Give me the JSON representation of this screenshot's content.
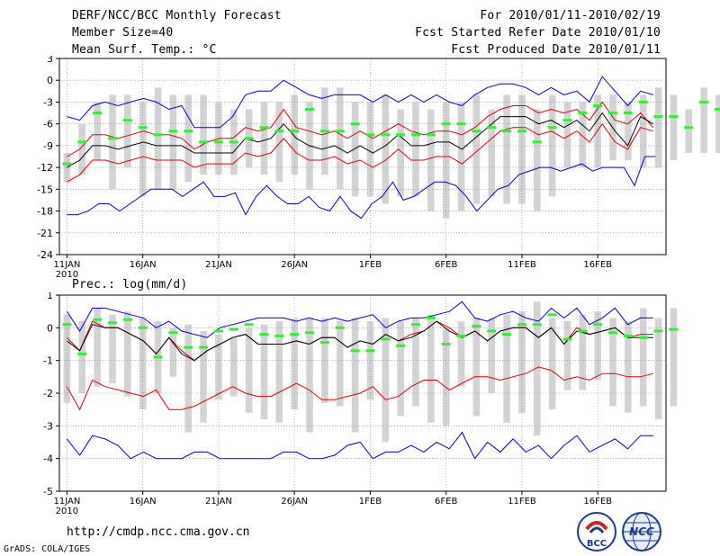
{
  "header": {
    "title": "DERF/NCC/BCC Monthly Forecast",
    "member_size": "Member Size=40",
    "variable1": "Mean Surf. Temp.: °C",
    "period": "For 2010/01/11-2010/02/19",
    "fcst_started": "Fcst Started Refer Date 2010/01/10",
    "fcst_produced": "Fcst Produced Date 2010/01/11"
  },
  "footer": {
    "url": "http://cmdp.ncc.cma.gov.cn",
    "grads": "GrADS: COLA/IGES",
    "logo_bcc": "BCC",
    "logo_ncc": "NCC"
  },
  "colors": {
    "max_line": "#0000cc",
    "min_line": "#0000cc",
    "upper_line": "#dd0000",
    "lower_line": "#dd0000",
    "mean_line": "#000000",
    "bar": "#d3d3d6",
    "obs": "#33ee33",
    "grid": "#888888"
  },
  "chart_data": [
    {
      "type": "line",
      "title": "Mean Surf. Temp.: °C",
      "ylim": [
        -24,
        3
      ],
      "yticks": [
        3,
        0,
        -3,
        -6,
        -9,
        -12,
        -15,
        -18,
        -21,
        -24
      ],
      "xlim": [
        0.5,
        40.5
      ],
      "xtick_days": [
        1,
        6,
        11,
        16,
        21,
        26,
        31,
        36
      ],
      "xtick_labels": [
        "11JAN",
        "16JAN",
        "21JAN",
        "26JAN",
        "1FEB",
        "6FEB",
        "11FEB",
        "16FEB"
      ],
      "year_label": "2010",
      "grid": true,
      "series": [
        {
          "name": "max",
          "values": [
            -5,
            -5.5,
            -3.5,
            -3,
            -3.5,
            -3,
            -2.5,
            -3,
            -4,
            -3.5,
            -6.5,
            -6.5,
            -6.5,
            -5,
            -2,
            -1.5,
            -1.5,
            0,
            -1,
            -2,
            -2.5,
            -2,
            -2,
            -2,
            -3,
            -2,
            -3,
            -2,
            -3,
            -2,
            -3,
            -3.5,
            -2,
            -1,
            -0.5,
            -0.5,
            -1,
            -2,
            -1,
            -2,
            -1.5,
            -3,
            0.5,
            -1.5,
            -3.5,
            -1.5,
            -2
          ]
        },
        {
          "name": "upper",
          "values": [
            -10.5,
            -9.5,
            -7.5,
            -7.5,
            -8,
            -7.5,
            -7,
            -7.5,
            -7.5,
            -8,
            -9.5,
            -8.5,
            -8,
            -8,
            -6.5,
            -7,
            -6.5,
            -4,
            -6.5,
            -7,
            -7.5,
            -7,
            -8,
            -7,
            -8,
            -7,
            -6,
            -7,
            -7.5,
            -7,
            -7,
            -7.5,
            -6.5,
            -5,
            -4,
            -3.5,
            -3.5,
            -4.5,
            -4,
            -4.5,
            -4,
            -5.5,
            -3,
            -5.5,
            -6,
            -4.5,
            -6.5
          ]
        },
        {
          "name": "mean",
          "values": [
            -12,
            -11,
            -9,
            -9,
            -9.5,
            -9,
            -8.5,
            -9,
            -9,
            -9,
            -10,
            -10,
            -10,
            -10,
            -8,
            -8.5,
            -8,
            -6,
            -8,
            -9,
            -9.5,
            -9,
            -10,
            -9,
            -10,
            -9,
            -7.5,
            -9,
            -9,
            -8.5,
            -8.5,
            -9.5,
            -8,
            -6.5,
            -5,
            -5,
            -5,
            -6,
            -5.5,
            -6.5,
            -5.5,
            -7,
            -4.5,
            -7,
            -9,
            -5,
            -6
          ]
        },
        {
          "name": "lower",
          "values": [
            -14,
            -13,
            -11,
            -11,
            -11.5,
            -11,
            -10.5,
            -11,
            -11,
            -11,
            -12,
            -11.5,
            -11.5,
            -11.5,
            -10,
            -10.5,
            -10,
            -8,
            -10,
            -11,
            -11,
            -10.5,
            -11.5,
            -11,
            -12,
            -11,
            -9.5,
            -11,
            -11,
            -10.5,
            -10.5,
            -11.5,
            -10,
            -8.5,
            -7,
            -6.5,
            -6.5,
            -7.5,
            -7,
            -8,
            -7,
            -8.5,
            -6,
            -8.5,
            -9.5,
            -6.5,
            -7
          ]
        },
        {
          "name": "min",
          "values": [
            -18.5,
            -18.5,
            -18,
            -17,
            -17,
            -18,
            -17,
            -16,
            -15,
            -15,
            -15,
            -16,
            -15,
            -14,
            -16,
            -16,
            -15.5,
            -18.5,
            -16,
            -14.5,
            -16,
            -17,
            -17,
            -16,
            -17.5,
            -18,
            -16,
            -18,
            -19,
            -17,
            -16,
            -14,
            -16.5,
            -16,
            -15,
            -14,
            -14,
            -14.5,
            -16,
            -18,
            -16.5,
            -15,
            -14.5,
            -13,
            -12.5,
            -12,
            -12,
            -12.5,
            -12,
            -11.5,
            -12.5,
            -12,
            -12,
            -12,
            -14.5,
            -10.5,
            -10.5
          ]
        },
        {
          "name": "obs",
          "values": [
            -11.5,
            -8.5,
            -4.5,
            -8,
            -5.5,
            -6.5,
            -7.5,
            -7,
            -7,
            -8.5,
            -8.5,
            -8.5,
            -8,
            -6.5,
            -7,
            -7,
            -4,
            -7,
            -7,
            -6,
            -7.5,
            -7.5,
            -7.5,
            -7.5,
            -7.5,
            -6,
            -6,
            -7,
            -6.5,
            -7,
            -7,
            -8.5,
            -6.5,
            -5.5,
            -4.5,
            -3.5,
            -4.5,
            -4.5,
            -3,
            -5,
            -5,
            -6.5,
            -3,
            -4,
            -3.5,
            -3.5,
            -3.5
          ]
        },
        {
          "name": "bar_high",
          "values": [
            -10,
            -6,
            -3,
            -2,
            -2,
            -3,
            -1,
            -2,
            -2,
            -2,
            -3,
            -4,
            -4,
            -3,
            -3,
            -2,
            -3,
            -1,
            -1,
            -3,
            -3,
            -2,
            -4,
            -3,
            -4,
            -3,
            -3,
            -2,
            -4,
            -2,
            -2,
            -4,
            -2,
            -3,
            -3,
            -2,
            -2,
            -3,
            -2,
            -1,
            -2,
            -4,
            -1,
            -2,
            -3,
            -2,
            -2
          ]
        },
        {
          "name": "bar_low",
          "values": [
            -14,
            -13,
            -11,
            -15,
            -12,
            -16,
            -15,
            -15,
            -14,
            -13,
            -13,
            -13,
            -12,
            -13,
            -14,
            -13,
            -15,
            -13,
            -15,
            -16,
            -16,
            -17,
            -16,
            -16,
            -18,
            -19,
            -18,
            -17,
            -16,
            -17,
            -17,
            -18,
            -16,
            -12,
            -12,
            -12,
            -11,
            -11,
            -12,
            -12,
            -11,
            -10,
            -10,
            -10,
            -11,
            -9,
            -10
          ]
        }
      ]
    },
    {
      "type": "line",
      "title": "Prec.: log(mm/d)",
      "ylim": [
        -5,
        1
      ],
      "yticks": [
        1,
        0,
        -1,
        -2,
        -3,
        -4,
        -5
      ],
      "xlim": [
        0.5,
        40.5
      ],
      "xtick_days": [
        1,
        6,
        11,
        16,
        21,
        26,
        31,
        36
      ],
      "xtick_labels": [
        "11JAN",
        "16JAN",
        "21JAN",
        "26JAN",
        "1FEB",
        "6FEB",
        "11FEB",
        "16FEB"
      ],
      "year_label": "2010",
      "grid": true,
      "series": [
        {
          "name": "max",
          "values": [
            0.5,
            -0.1,
            0.6,
            0.6,
            0.5,
            0.4,
            0.3,
            0,
            0.2,
            -0.1,
            -0.2,
            -0.3,
            0,
            0.1,
            0.2,
            0.3,
            0.3,
            0.3,
            0.2,
            0.3,
            0.2,
            0.3,
            0.2,
            0.3,
            0.4,
            0,
            0.2,
            0.3,
            0.3,
            0.4,
            0.5,
            0.8,
            0.3,
            0.2,
            0.4,
            0.5,
            0.3,
            0.2,
            0.6,
            0.3,
            0.6,
            0.1,
            0.3,
            0.6,
            0.1,
            0.3,
            0.3
          ]
        },
        {
          "name": "upper",
          "values": [
            -0.3,
            -0.7,
            0.2,
            0,
            0,
            -0.2,
            -0.4,
            -0.8,
            -0.3,
            -0.7,
            -1,
            -0.7,
            -0.5,
            -0.3,
            -0.2,
            -0.5,
            -0.5,
            -0.5,
            -0.4,
            -0.5,
            -0.3,
            -0.3,
            -0.6,
            -0.4,
            -0.5,
            -0.2,
            -0.4,
            -0.2,
            -0.1,
            0.2,
            0,
            -0.3,
            -0.1,
            -0.4,
            -0.1,
            0,
            0,
            -0.3,
            0,
            -0.5,
            0,
            -0.2,
            -0.1,
            0,
            -0.3,
            -0.2,
            -0.2
          ]
        },
        {
          "name": "mean",
          "values": [
            -0.4,
            -0.7,
            0.1,
            0,
            0,
            -0.2,
            -0.4,
            -0.8,
            -0.3,
            -0.8,
            -1,
            -0.7,
            -0.5,
            -0.3,
            -0.2,
            -0.5,
            -0.5,
            -0.5,
            -0.4,
            -0.5,
            -0.3,
            -0.3,
            -0.6,
            -0.4,
            -0.5,
            -0.2,
            -0.4,
            -0.3,
            -0.1,
            0.2,
            -0.1,
            -0.3,
            -0.1,
            -0.4,
            -0.1,
            0,
            0,
            -0.3,
            0,
            -0.5,
            -0.1,
            -0.2,
            -0.1,
            0,
            -0.3,
            -0.3,
            -0.3
          ]
        },
        {
          "name": "lower",
          "values": [
            -1.8,
            -2.5,
            -1.6,
            -1.8,
            -1.9,
            -2,
            -2.1,
            -1.9,
            -2.5,
            -2.5,
            -2.4,
            -2.2,
            -2,
            -1.8,
            -2,
            -2.1,
            -2.1,
            -1.9,
            -1.7,
            -1.9,
            -2.2,
            -2.2,
            -2.1,
            -2,
            -1.8,
            -2.2,
            -2.1,
            -1.8,
            -1.6,
            -1.6,
            -1.9,
            -1.7,
            -1.5,
            -1.5,
            -1.6,
            -1.5,
            -1.4,
            -1.2,
            -1.3,
            -1.6,
            -1.5,
            -1.6,
            -1.4,
            -1.4,
            -1.5,
            -1.5,
            -1.4
          ]
        },
        {
          "name": "min",
          "values": [
            -3.4,
            -3.9,
            -3.3,
            -3.4,
            -3.6,
            -4,
            -3.8,
            -4,
            -4,
            -4,
            -3.8,
            -3.8,
            -4,
            -4,
            -4,
            -4,
            -4,
            -3.8,
            -3.8,
            -4,
            -4,
            -3.9,
            -3.6,
            -3.5,
            -4,
            -3.8,
            -3.8,
            -3.6,
            -3.8,
            -3.5,
            -3.7,
            -3.2,
            -4,
            -3.5,
            -3.8,
            -3.4,
            -3.8,
            -3.6,
            -4,
            -3.6,
            -3.3,
            -3.8,
            -3.6,
            -3.4,
            -3.7,
            -3.3,
            -3.3
          ]
        },
        {
          "name": "obs",
          "values": [
            0.1,
            -0.8,
            0.25,
            0.15,
            0.25,
            0,
            -0.9,
            -0.15,
            -0.6,
            -0.6,
            -0.1,
            -0.05,
            0.1,
            -0.2,
            -0.25,
            -0.2,
            -0.15,
            -0.45,
            0,
            -0.7,
            -0.7,
            -0.35,
            -0.55,
            0.1,
            0.3,
            -0.5,
            -0.25,
            0.05,
            -0.1,
            -0.2,
            0.1,
            0.1,
            0.4,
            -0.35,
            -0.1,
            0.1,
            -0.15,
            -0.25,
            -0.3,
            -0.1,
            -0.05
          ]
        },
        {
          "name": "bar_high",
          "values": [
            0.4,
            0.2,
            0.6,
            0.4,
            0.5,
            0.3,
            0.2,
            0,
            0.1,
            -0.1,
            -0.2,
            -0.3,
            0,
            0.1,
            0.2,
            0.3,
            0.3,
            0.3,
            0.2,
            0.3,
            0.2,
            0.3,
            0.2,
            0.3,
            0.4,
            0,
            0.2,
            0.3,
            0.3,
            0.4,
            0.5,
            0.8,
            0.3,
            0.2,
            0.4,
            0.5,
            0.3,
            0.2,
            0.6,
            0.3,
            0.6
          ]
        },
        {
          "name": "bar_low",
          "values": [
            -2.3,
            -2,
            -1.8,
            -1.7,
            -2.1,
            -2.5,
            -2,
            -1.5,
            -3.2,
            -2.9,
            -2.2,
            -2.1,
            -2.6,
            -2.8,
            -2.9,
            -2.5,
            -3.2,
            -2.3,
            -2.4,
            -3.2,
            -2.2,
            -3.5,
            -2.7,
            -2.4,
            -2.9,
            -3,
            -1.8,
            -2.7,
            -2,
            -2.9,
            -2.6,
            -3.3,
            -2.5,
            -1.9,
            -1.9,
            -1.6,
            -2.4,
            -2.6,
            -2.4,
            -2.8,
            -2.4
          ]
        }
      ]
    }
  ]
}
